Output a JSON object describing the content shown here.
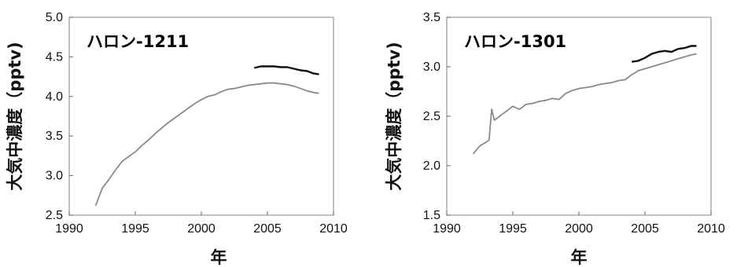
{
  "colors": {
    "series_gray": "#8a8a8a",
    "series_black": "#111111"
  },
  "chart_data": [
    {
      "type": "line",
      "title": "ハロン-1211",
      "xlabel": "年",
      "ylabel": "大気中濃度（pptv)",
      "xlim": [
        1990,
        2010
      ],
      "ylim": [
        2.5,
        5.0
      ],
      "x_ticks": [
        "1990",
        "1995",
        "2000",
        "2005",
        "2010"
      ],
      "y_ticks": [
        "2.5",
        "3.0",
        "3.5",
        "4.0",
        "4.5",
        "5.0"
      ],
      "grid": false,
      "series": [
        {
          "color": "#8a8a8a",
          "x": [
            1992.0,
            1992.5,
            1993.0,
            1993.5,
            1994.0,
            1994.5,
            1995.0,
            1995.5,
            1996.0,
            1996.5,
            1997.0,
            1997.5,
            1998.0,
            1998.5,
            1999.0,
            1999.5,
            2000.0,
            2000.5,
            2001.0,
            2001.5,
            2002.0,
            2002.5,
            2003.0,
            2003.5,
            2004.0,
            2004.5,
            2005.0,
            2005.5,
            2006.0,
            2006.5,
            2007.0,
            2007.5,
            2008.0,
            2008.5,
            2008.9
          ],
          "y": [
            2.62,
            2.84,
            2.95,
            3.07,
            3.18,
            3.24,
            3.3,
            3.38,
            3.45,
            3.53,
            3.6,
            3.67,
            3.73,
            3.79,
            3.85,
            3.91,
            3.96,
            4.0,
            4.02,
            4.06,
            4.09,
            4.1,
            4.12,
            4.14,
            4.15,
            4.16,
            4.17,
            4.17,
            4.16,
            4.15,
            4.13,
            4.1,
            4.07,
            4.05,
            4.04
          ]
        },
        {
          "color": "#111111",
          "x": [
            2004.0,
            2004.5,
            2005.0,
            2005.5,
            2006.0,
            2006.5,
            2007.0,
            2007.5,
            2008.0,
            2008.5,
            2008.9
          ],
          "y": [
            4.36,
            4.38,
            4.38,
            4.38,
            4.37,
            4.37,
            4.35,
            4.33,
            4.32,
            4.29,
            4.28
          ]
        }
      ]
    },
    {
      "type": "line",
      "title": "ハロン-1301",
      "xlabel": "年",
      "ylabel": "大気中濃度（pptv)",
      "xlim": [
        1990,
        2010
      ],
      "ylim": [
        1.5,
        3.5
      ],
      "x_ticks": [
        "1990",
        "1995",
        "2000",
        "2005",
        "2010"
      ],
      "y_ticks": [
        "1.5",
        "2.0",
        "2.5",
        "3.0",
        "3.5"
      ],
      "grid": false,
      "series": [
        {
          "color": "#8a8a8a",
          "x": [
            1992.0,
            1992.5,
            1993.0,
            1993.2,
            1993.4,
            1993.6,
            1994.0,
            1994.5,
            1995.0,
            1995.5,
            1996.0,
            1996.5,
            1997.0,
            1997.5,
            1998.0,
            1998.5,
            1999.0,
            1999.5,
            2000.0,
            2000.5,
            2001.0,
            2001.5,
            2002.0,
            2002.5,
            2003.0,
            2003.5,
            2004.0,
            2004.5,
            2005.0,
            2005.5,
            2006.0,
            2006.5,
            2007.0,
            2007.5,
            2008.0,
            2008.5,
            2008.9
          ],
          "y": [
            2.12,
            2.2,
            2.24,
            2.26,
            2.57,
            2.46,
            2.5,
            2.55,
            2.6,
            2.57,
            2.62,
            2.63,
            2.65,
            2.66,
            2.68,
            2.67,
            2.73,
            2.76,
            2.78,
            2.79,
            2.8,
            2.82,
            2.83,
            2.84,
            2.86,
            2.87,
            2.92,
            2.96,
            2.98,
            3.0,
            3.02,
            3.04,
            3.06,
            3.08,
            3.1,
            3.12,
            3.13
          ]
        },
        {
          "color": "#111111",
          "x": [
            2004.0,
            2004.5,
            2005.0,
            2005.5,
            2006.0,
            2006.5,
            2007.0,
            2007.5,
            2008.0,
            2008.5,
            2008.9
          ],
          "y": [
            3.05,
            3.06,
            3.09,
            3.13,
            3.15,
            3.16,
            3.15,
            3.18,
            3.19,
            3.21,
            3.21
          ]
        }
      ]
    }
  ]
}
